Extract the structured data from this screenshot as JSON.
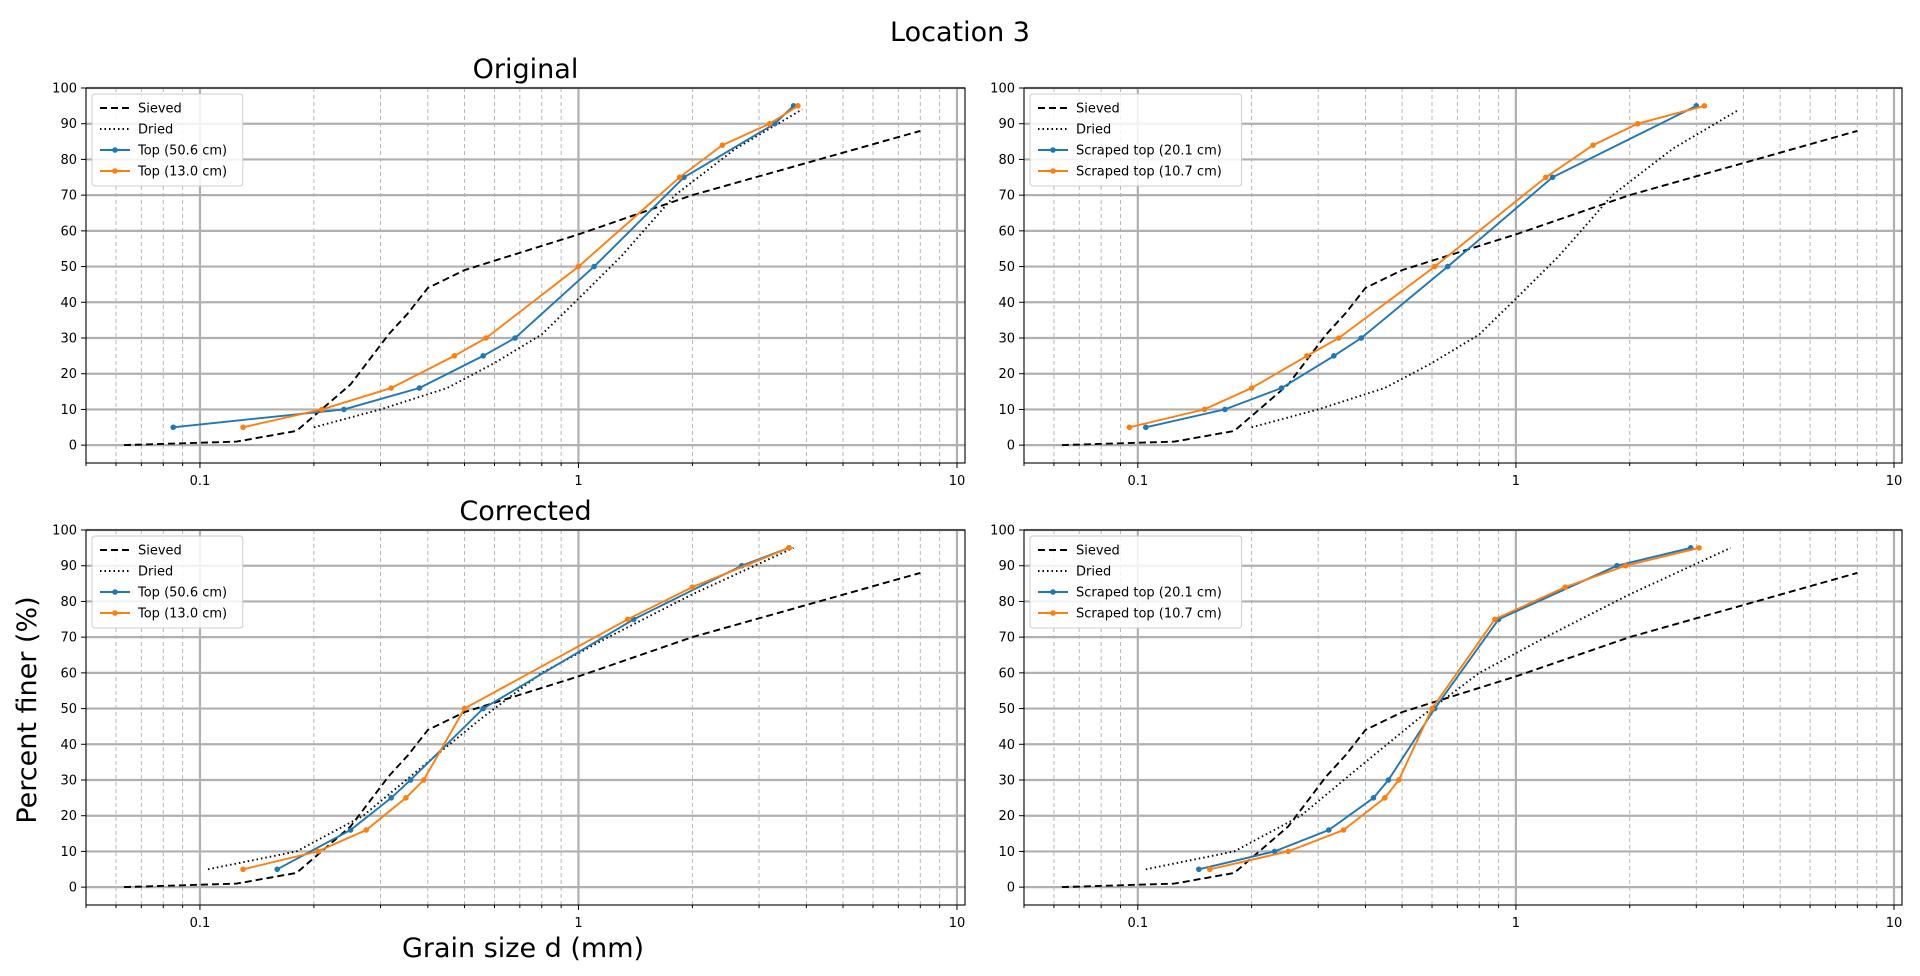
{
  "figure": {
    "suptitle": "Location 3",
    "ylabel": "Percent finer (%)",
    "xlabel": "Grain size d (mm)"
  },
  "styles": {
    "Sieved": {
      "color": "#000000",
      "dash": "7,4",
      "marker": false
    },
    "Dried": {
      "color": "#000000",
      "dash": "1.5,3",
      "marker": false
    },
    "blue": {
      "color": "#1f77b4",
      "dash": "",
      "marker": true
    },
    "orange": {
      "color": "#ff7f0e",
      "dash": "",
      "marker": true
    }
  },
  "chart_data": [
    {
      "type": "line",
      "title": "Original",
      "xscale": "log",
      "xlim": [
        0.05,
        10.5
      ],
      "ylim": [
        -5,
        100
      ],
      "yticks": [
        0,
        10,
        20,
        30,
        40,
        50,
        60,
        70,
        80,
        90,
        100
      ],
      "xticks": [
        {
          "v": 0.1,
          "label": "0.1"
        },
        {
          "v": 1,
          "label": "1"
        },
        {
          "v": 10,
          "label": "10"
        }
      ],
      "grid": true,
      "legend": "upper left",
      "series": [
        {
          "name": "Sieved",
          "style": "Sieved",
          "x": [
            0.063,
            0.125,
            0.18,
            0.25,
            0.315,
            0.355,
            0.4,
            0.5,
            1.0,
            2.0,
            8.0
          ],
          "y": [
            0,
            1,
            4,
            17,
            31,
            37,
            44,
            49,
            59,
            70,
            88
          ]
        },
        {
          "name": "Dried",
          "style": "Dried",
          "x": [
            0.2,
            0.3,
            0.45,
            0.6,
            0.8,
            1.0,
            1.3,
            1.8,
            2.6,
            3.9
          ],
          "y": [
            5,
            10,
            16,
            23,
            31,
            41,
            53,
            70,
            83,
            94
          ]
        },
        {
          "name": "Top (50.6 cm)",
          "style": "blue",
          "x": [
            0.085,
            0.24,
            0.38,
            0.56,
            0.68,
            1.1,
            1.9,
            3.3,
            3.7
          ],
          "y": [
            5,
            10,
            16,
            25,
            30,
            50,
            75,
            90,
            95
          ]
        },
        {
          "name": "Top (13.0 cm)",
          "style": "orange",
          "x": [
            0.13,
            0.21,
            0.32,
            0.47,
            0.57,
            1.0,
            1.85,
            2.4,
            3.2,
            3.8
          ],
          "y": [
            5,
            10,
            16,
            25,
            30,
            50,
            75,
            84,
            90,
            95
          ]
        }
      ]
    },
    {
      "type": "line",
      "title": "",
      "xscale": "log",
      "xlim": [
        0.05,
        10.5
      ],
      "ylim": [
        -5,
        100
      ],
      "yticks": [
        0,
        10,
        20,
        30,
        40,
        50,
        60,
        70,
        80,
        90,
        100
      ],
      "xticks": [
        {
          "v": 0.1,
          "label": "0.1"
        },
        {
          "v": 1,
          "label": "1"
        },
        {
          "v": 10,
          "label": "10"
        }
      ],
      "grid": true,
      "legend": "upper left",
      "series": [
        {
          "name": "Sieved",
          "style": "Sieved",
          "x": [
            0.063,
            0.125,
            0.18,
            0.25,
            0.315,
            0.355,
            0.4,
            0.5,
            1.0,
            2.0,
            8.0
          ],
          "y": [
            0,
            1,
            4,
            17,
            31,
            37,
            44,
            49,
            59,
            70,
            88
          ]
        },
        {
          "name": "Dried",
          "style": "Dried",
          "x": [
            0.2,
            0.3,
            0.45,
            0.6,
            0.8,
            1.0,
            1.3,
            1.8,
            2.6,
            3.9
          ],
          "y": [
            5,
            10,
            16,
            23,
            31,
            41,
            53,
            70,
            83,
            94
          ]
        },
        {
          "name": "Scraped top (20.1 cm)",
          "style": "blue",
          "x": [
            0.105,
            0.17,
            0.24,
            0.33,
            0.39,
            0.66,
            1.25,
            3.0
          ],
          "y": [
            5,
            10,
            16,
            25,
            30,
            50,
            75,
            95
          ]
        },
        {
          "name": "Scraped top (10.7 cm)",
          "style": "orange",
          "x": [
            0.095,
            0.15,
            0.2,
            0.28,
            0.34,
            0.61,
            1.2,
            1.6,
            2.1,
            3.15
          ],
          "y": [
            5,
            10,
            16,
            25,
            30,
            50,
            75,
            84,
            90,
            95
          ]
        }
      ]
    },
    {
      "type": "line",
      "title": "Corrected",
      "xscale": "log",
      "xlim": [
        0.05,
        10.5
      ],
      "ylim": [
        -5,
        100
      ],
      "yticks": [
        0,
        10,
        20,
        30,
        40,
        50,
        60,
        70,
        80,
        90,
        100
      ],
      "xticks": [
        {
          "v": 0.1,
          "label": "0.1"
        },
        {
          "v": 1,
          "label": "1"
        },
        {
          "v": 10,
          "label": "10"
        }
      ],
      "grid": true,
      "legend": "upper left",
      "series": [
        {
          "name": "Sieved",
          "style": "Sieved",
          "x": [
            0.063,
            0.125,
            0.18,
            0.25,
            0.315,
            0.355,
            0.4,
            0.5,
            1.0,
            2.0,
            8.0
          ],
          "y": [
            0,
            1,
            4,
            17,
            31,
            37,
            44,
            49,
            59,
            70,
            88
          ]
        },
        {
          "name": "Dried",
          "style": "Dried",
          "x": [
            0.105,
            0.18,
            0.27,
            0.4,
            0.55,
            0.8,
            1.2,
            2.0,
            3.7
          ],
          "y": [
            5,
            10,
            20,
            35,
            47,
            60,
            70,
            82,
            95
          ]
        },
        {
          "name": "Top (50.6 cm)",
          "style": "blue",
          "x": [
            0.16,
            0.25,
            0.32,
            0.36,
            0.56,
            1.4,
            2.7,
            3.6
          ],
          "y": [
            5,
            16,
            25,
            30,
            50,
            75,
            90,
            95
          ]
        },
        {
          "name": "Top (13.0 cm)",
          "style": "orange",
          "x": [
            0.13,
            0.205,
            0.275,
            0.35,
            0.39,
            0.5,
            1.35,
            2.0,
            3.6
          ],
          "y": [
            5,
            10,
            16,
            25,
            30,
            50,
            75,
            84,
            95
          ]
        }
      ]
    },
    {
      "type": "line",
      "title": "",
      "xscale": "log",
      "xlim": [
        0.05,
        10.5
      ],
      "ylim": [
        -5,
        100
      ],
      "yticks": [
        0,
        10,
        20,
        30,
        40,
        50,
        60,
        70,
        80,
        90,
        100
      ],
      "xticks": [
        {
          "v": 0.1,
          "label": "0.1"
        },
        {
          "v": 1,
          "label": "1"
        },
        {
          "v": 10,
          "label": "10"
        }
      ],
      "grid": true,
      "legend": "upper left",
      "series": [
        {
          "name": "Sieved",
          "style": "Sieved",
          "x": [
            0.063,
            0.125,
            0.18,
            0.25,
            0.315,
            0.355,
            0.4,
            0.5,
            1.0,
            2.0,
            8.0
          ],
          "y": [
            0,
            1,
            4,
            17,
            31,
            37,
            44,
            49,
            59,
            70,
            88
          ]
        },
        {
          "name": "Dried",
          "style": "Dried",
          "x": [
            0.105,
            0.18,
            0.27,
            0.4,
            0.55,
            0.8,
            1.2,
            2.0,
            3.7
          ],
          "y": [
            5,
            10,
            20,
            35,
            47,
            60,
            70,
            82,
            95
          ]
        },
        {
          "name": "Scraped top (20.1 cm)",
          "style": "blue",
          "x": [
            0.145,
            0.23,
            0.32,
            0.42,
            0.46,
            0.61,
            0.9,
            1.85,
            2.9
          ],
          "y": [
            5,
            10,
            16,
            25,
            30,
            50,
            75,
            90,
            95
          ]
        },
        {
          "name": "Scraped top (10.7 cm)",
          "style": "orange",
          "x": [
            0.155,
            0.25,
            0.35,
            0.45,
            0.49,
            0.6,
            0.88,
            1.35,
            1.95,
            3.05
          ],
          "y": [
            5,
            10,
            16,
            25,
            30,
            50,
            75,
            84,
            90,
            95
          ]
        }
      ]
    }
  ]
}
